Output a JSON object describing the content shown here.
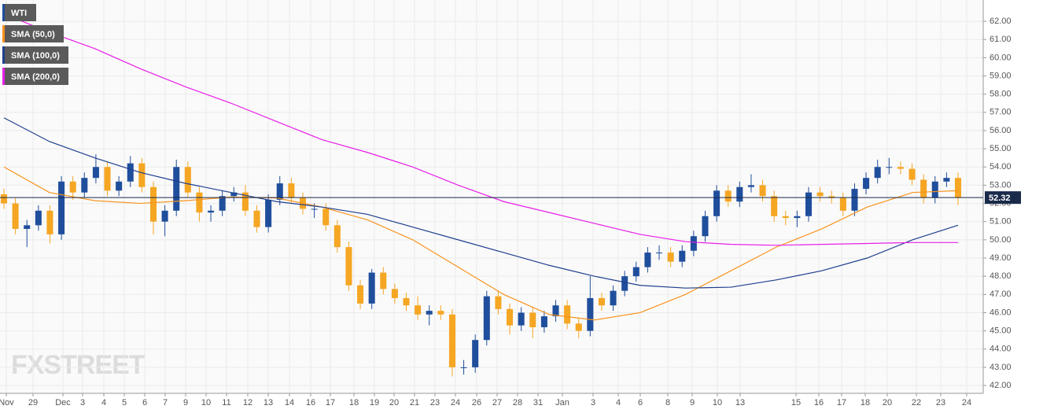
{
  "chart_data": {
    "type": "candlestick",
    "watermark": "FXSTREET",
    "grid": true,
    "x_labels": [
      "Nov",
      "29",
      "Dec",
      "3",
      "4",
      "5",
      "6",
      "7",
      "9",
      "10",
      "11",
      "12",
      "13",
      "14",
      "16",
      "17",
      "18",
      "19",
      "20",
      "21",
      "23",
      "24",
      "26",
      "27",
      "28",
      "31",
      "Jan",
      "3",
      "4",
      "6",
      "8",
      "9",
      "10",
      "13",
      "15",
      "16",
      "17",
      "18",
      "20",
      "22",
      "23",
      "24"
    ],
    "ylim": [
      41.57,
      63.17
    ],
    "yticks": [
      {
        "value": 42,
        "label": "42.00"
      },
      {
        "value": 43,
        "label": "43.00"
      },
      {
        "value": 44,
        "label": "44.00"
      },
      {
        "value": 45,
        "label": "45.00"
      },
      {
        "value": 46,
        "label": "46.00"
      },
      {
        "value": 47,
        "label": "47.00"
      },
      {
        "value": 48,
        "label": "48.00"
      },
      {
        "value": 49,
        "label": "49.00"
      },
      {
        "value": 50,
        "label": "50.00"
      },
      {
        "value": 51,
        "label": "51.00"
      },
      {
        "value": 52,
        "label": "52.00"
      },
      {
        "value": 53,
        "label": "53.00"
      },
      {
        "value": 54,
        "label": "54.00"
      },
      {
        "value": 55,
        "label": "55.00"
      },
      {
        "value": 56,
        "label": "56.00"
      },
      {
        "value": 57,
        "label": "57.00"
      },
      {
        "value": 58,
        "label": "58.00"
      },
      {
        "value": 59,
        "label": "59.00"
      },
      {
        "value": 60,
        "label": "60.00"
      },
      {
        "value": 61,
        "label": "61.00"
      },
      {
        "value": 62,
        "label": "62.00"
      }
    ],
    "last_price": 52.32,
    "series": [
      {
        "name": "WTI",
        "color": "#1f4e9c",
        "down_color": "#f5a623",
        "open": [
          52.5,
          52.0,
          50.6,
          50.8,
          51.6,
          50.3,
          53.2,
          52.6,
          53.4,
          54.0,
          52.7,
          53.2,
          54.2,
          52.9,
          51.0,
          51.6,
          54.0,
          52.6,
          51.5,
          51.6,
          52.4,
          52.6,
          51.6,
          50.7,
          52.2,
          53.1,
          52.3,
          51.7,
          51.7,
          50.8,
          49.6,
          47.5,
          46.5,
          48.2,
          47.3,
          46.8,
          46.4,
          45.9,
          46.1,
          45.9,
          43.0,
          43.0,
          44.5,
          46.9,
          46.2,
          45.3,
          46.0,
          45.2,
          45.8,
          46.4,
          45.4,
          45.0,
          46.8,
          46.4,
          47.2,
          48.0,
          48.5,
          49.3,
          49.3,
          48.8,
          49.4,
          50.2,
          51.3,
          52.7,
          52.1,
          52.9,
          53.0,
          52.4,
          51.3,
          51.2,
          51.3,
          52.6,
          52.4,
          52.3,
          51.6,
          52.8,
          53.4,
          54.0,
          54.0,
          53.9,
          53.3,
          52.3,
          53.2,
          53.4
        ],
        "high": [
          52.8,
          52.3,
          51.1,
          51.9,
          51.9,
          53.5,
          53.5,
          53.7,
          54.7,
          54.3,
          53.5,
          54.6,
          54.5,
          53.2,
          51.9,
          54.4,
          54.3,
          52.9,
          51.9,
          52.7,
          52.9,
          53.0,
          51.9,
          52.5,
          53.5,
          53.4,
          52.6,
          52.0,
          52.0,
          51.1,
          49.9,
          47.8,
          48.4,
          48.5,
          47.6,
          47.1,
          46.9,
          46.4,
          46.4,
          46.2,
          43.4,
          44.8,
          47.2,
          47.2,
          46.5,
          46.3,
          46.3,
          46.1,
          46.7,
          46.7,
          45.7,
          48.0,
          47.1,
          47.5,
          48.3,
          48.8,
          49.6,
          49.7,
          49.6,
          49.7,
          50.5,
          51.6,
          53.0,
          53.0,
          53.2,
          53.6,
          53.3,
          52.7,
          51.6,
          51.6,
          52.9,
          52.9,
          52.7,
          52.6,
          53.1,
          53.7,
          54.4,
          54.5,
          54.3,
          54.2,
          53.6,
          53.5,
          53.7,
          53.7
        ],
        "low": [
          51.7,
          50.3,
          49.6,
          50.5,
          49.8,
          50.0,
          52.2,
          52.3,
          53.1,
          52.4,
          52.4,
          52.9,
          52.6,
          50.3,
          50.2,
          51.3,
          52.3,
          51.0,
          51.0,
          51.3,
          52.1,
          51.3,
          50.4,
          50.4,
          51.9,
          52.0,
          51.4,
          51.2,
          50.5,
          49.3,
          47.2,
          46.2,
          46.2,
          47.0,
          46.5,
          46.1,
          45.6,
          45.3,
          45.6,
          42.5,
          42.6,
          42.7,
          44.2,
          45.9,
          44.8,
          45.0,
          44.6,
          44.9,
          45.5,
          45.1,
          44.6,
          44.7,
          46.1,
          46.1,
          46.9,
          47.7,
          48.2,
          48.9,
          48.5,
          48.5,
          49.1,
          49.9,
          51.0,
          51.8,
          51.8,
          52.6,
          52.1,
          51.0,
          50.8,
          50.7,
          51.0,
          52.1,
          52.0,
          51.3,
          51.3,
          52.5,
          53.1,
          53.6,
          53.6,
          53.0,
          52.0,
          52.0,
          52.9,
          51.9
        ],
        "close": [
          52.0,
          50.6,
          50.8,
          51.6,
          50.3,
          53.2,
          52.6,
          53.4,
          54.0,
          52.7,
          53.2,
          54.2,
          52.9,
          51.0,
          51.6,
          54.0,
          52.6,
          51.5,
          51.6,
          52.4,
          52.6,
          51.6,
          50.7,
          52.2,
          53.1,
          52.3,
          51.7,
          51.7,
          50.8,
          49.6,
          47.5,
          46.5,
          48.2,
          47.3,
          46.8,
          46.4,
          45.9,
          46.1,
          45.9,
          43.0,
          43.0,
          44.5,
          46.9,
          46.2,
          45.3,
          46.0,
          45.2,
          45.8,
          46.4,
          45.4,
          45.0,
          46.8,
          46.4,
          47.2,
          48.0,
          48.5,
          49.3,
          49.3,
          48.8,
          49.4,
          50.2,
          51.3,
          52.7,
          52.1,
          52.9,
          53.0,
          52.4,
          51.3,
          51.2,
          51.3,
          52.6,
          52.4,
          52.3,
          51.6,
          52.8,
          53.4,
          54.0,
          54.0,
          53.9,
          53.3,
          52.3,
          53.2,
          53.4,
          52.32
        ]
      },
      {
        "name": "SMA (50,0)",
        "color": "#f7931e",
        "values": [
          54.0,
          52.6,
          52.15,
          52.0,
          52.15,
          52.35,
          52.3,
          51.8,
          51.1,
          50.0,
          48.5,
          47.0,
          45.9,
          45.6,
          46.0,
          47.0,
          48.3,
          49.6,
          50.6,
          51.8,
          52.6,
          52.7
        ]
      },
      {
        "name": "SMA (100,0)",
        "color": "#1f3f8f",
        "values": [
          56.7,
          55.4,
          54.5,
          53.7,
          53.1,
          52.6,
          52.1,
          51.8,
          51.4,
          50.7,
          50.0,
          49.3,
          48.6,
          48.0,
          47.5,
          47.35,
          47.4,
          47.8,
          48.3,
          49.0,
          50.0,
          50.8
        ]
      },
      {
        "name": "SMA (200,0)",
        "color": "#e81ee8",
        "values": [
          62.4,
          61.4,
          60.5,
          59.4,
          58.4,
          57.5,
          56.5,
          55.5,
          54.8,
          54.0,
          53.0,
          52.1,
          51.5,
          50.9,
          50.3,
          49.9,
          49.75,
          49.7,
          49.75,
          49.8,
          49.85,
          49.85
        ]
      }
    ]
  }
}
